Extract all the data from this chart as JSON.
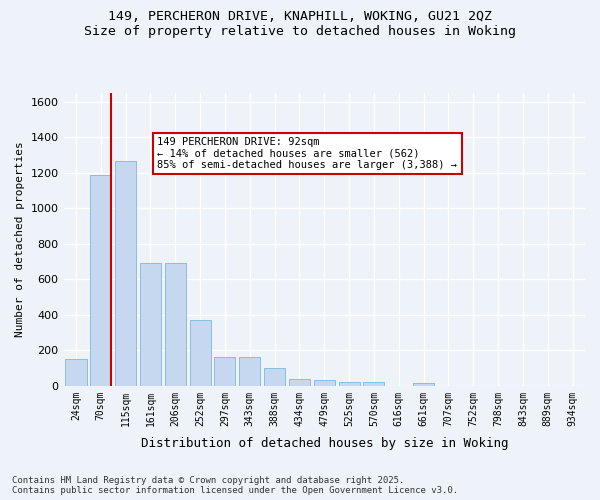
{
  "title_line1": "149, PERCHERON DRIVE, KNAPHILL, WOKING, GU21 2QZ",
  "title_line2": "Size of property relative to detached houses in Woking",
  "xlabel": "Distribution of detached houses by size in Woking",
  "ylabel": "Number of detached properties",
  "categories": [
    "24sqm",
    "70sqm",
    "115sqm",
    "161sqm",
    "206sqm",
    "252sqm",
    "297sqm",
    "343sqm",
    "388sqm",
    "434sqm",
    "479sqm",
    "525sqm",
    "570sqm",
    "616sqm",
    "661sqm",
    "707sqm",
    "752sqm",
    "798sqm",
    "843sqm",
    "889sqm",
    "934sqm"
  ],
  "values": [
    150,
    1190,
    1265,
    690,
    690,
    370,
    165,
    165,
    100,
    40,
    35,
    22,
    20,
    0,
    15,
    0,
    0,
    0,
    0,
    0,
    0
  ],
  "bar_color": "#c5d8f0",
  "bar_edge_color": "#6aaed6",
  "vline_x": 1,
  "vline_color": "#cc0000",
  "annotation_text": "149 PERCHERON DRIVE: 92sqm\n← 14% of detached houses are smaller (562)\n85% of semi-detached houses are larger (3,388) →",
  "annotation_box_color": "#ffffff",
  "annotation_box_edge": "#cc0000",
  "ylim": [
    0,
    1650
  ],
  "yticks": [
    0,
    200,
    400,
    600,
    800,
    1000,
    1200,
    1400,
    1600
  ],
  "footnote": "Contains HM Land Registry data © Crown copyright and database right 2025.\nContains public sector information licensed under the Open Government Licence v3.0.",
  "bg_color": "#eef3fa",
  "grid_color": "#ffffff"
}
